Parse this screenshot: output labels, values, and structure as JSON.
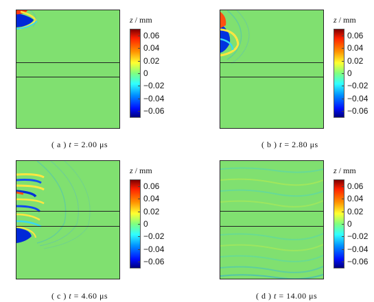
{
  "chart_data": [
    {
      "type": "heatmap",
      "panel_label": "( a )",
      "t_value": "2.00",
      "t_unit": "μs",
      "colorbar_title": "z",
      "colorbar_unit": "/ mm",
      "colorbar_ticks": [
        "0.06",
        "0.04",
        "0.02",
        "0",
        "−0.02",
        "−0.04",
        "−0.06"
      ],
      "colorbar_range": [
        -0.07,
        0.07
      ],
      "layer_boundaries": 2
    },
    {
      "type": "heatmap",
      "panel_label": "( b )",
      "t_value": "2.80",
      "t_unit": "μs",
      "colorbar_title": "z",
      "colorbar_unit": "/ mm",
      "colorbar_ticks": [
        "0.06",
        "0.04",
        "0.02",
        "0",
        "−0.02",
        "−0.04",
        "−0.06"
      ],
      "colorbar_range": [
        -0.07,
        0.07
      ],
      "layer_boundaries": 2
    },
    {
      "type": "heatmap",
      "panel_label": "( c )",
      "t_value": "4.60",
      "t_unit": "μs",
      "colorbar_title": "z",
      "colorbar_unit": "/ mm",
      "colorbar_ticks": [
        "0.06",
        "0.04",
        "0.02",
        "0",
        "−0.02",
        "−0.04",
        "−0.06"
      ],
      "colorbar_range": [
        -0.07,
        0.07
      ],
      "layer_boundaries": 2
    },
    {
      "type": "heatmap",
      "panel_label": "( d )",
      "t_value": "14.00",
      "t_unit": "μs",
      "colorbar_title": "z",
      "colorbar_unit": "/ mm",
      "colorbar_ticks": [
        "0.06",
        "0.04",
        "0.02",
        "0",
        "−0.02",
        "−0.04",
        "−0.06"
      ],
      "colorbar_range": [
        -0.07,
        0.07
      ],
      "layer_boundaries": 2
    }
  ],
  "captions": [
    {
      "label": "( a )",
      "var": "t",
      "eq": "=",
      "value": "2.00",
      "unit": "μs"
    },
    {
      "label": "( b )",
      "var": "t",
      "eq": "=",
      "value": "2.80",
      "unit": "μs"
    },
    {
      "label": "( c )",
      "var": "t",
      "eq": "=",
      "value": "4.60",
      "unit": "μs"
    },
    {
      "label": "( d )",
      "var": "t",
      "eq": "=",
      "value": "14.00",
      "unit": "μs"
    }
  ]
}
